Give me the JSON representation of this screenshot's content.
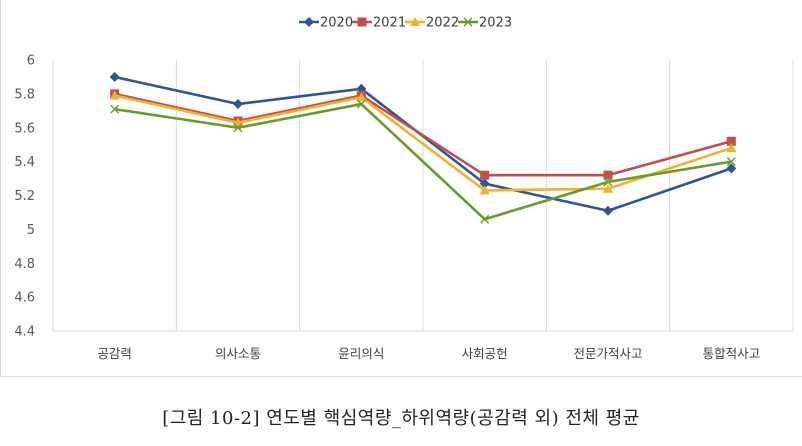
{
  "caption": "[그림 10-2] 연도별 핵심역량_하위역량(공감력 외) 전체 평균",
  "chart_data": {
    "type": "line",
    "categories": [
      "공감력",
      "의사소통",
      "윤리의식",
      "사회공헌",
      "전문가적사고",
      "통합적사고"
    ],
    "series": [
      {
        "name": "2020",
        "color": "#2f5597",
        "marker": "diamond",
        "values": [
          5.9,
          5.74,
          5.83,
          5.27,
          5.11,
          5.36
        ]
      },
      {
        "name": "2021",
        "color": "#c0504d",
        "marker": "square",
        "values": [
          5.8,
          5.64,
          5.79,
          5.32,
          5.32,
          5.52
        ]
      },
      {
        "name": "2022",
        "color": "#f2b22c",
        "marker": "triangle",
        "values": [
          5.79,
          5.63,
          5.78,
          5.23,
          5.24,
          5.48
        ]
      },
      {
        "name": "2023",
        "color": "#6a9a2c",
        "marker": "x",
        "values": [
          5.71,
          5.6,
          5.74,
          5.06,
          5.28,
          5.4
        ]
      }
    ],
    "ylim": [
      4.4,
      6
    ],
    "yticks": [
      "6",
      "5.8",
      "5.6",
      "5.4",
      "5.2",
      "5",
      "4.8",
      "4.6",
      "4.4"
    ],
    "grid": "vertical",
    "legend": "top-center"
  }
}
